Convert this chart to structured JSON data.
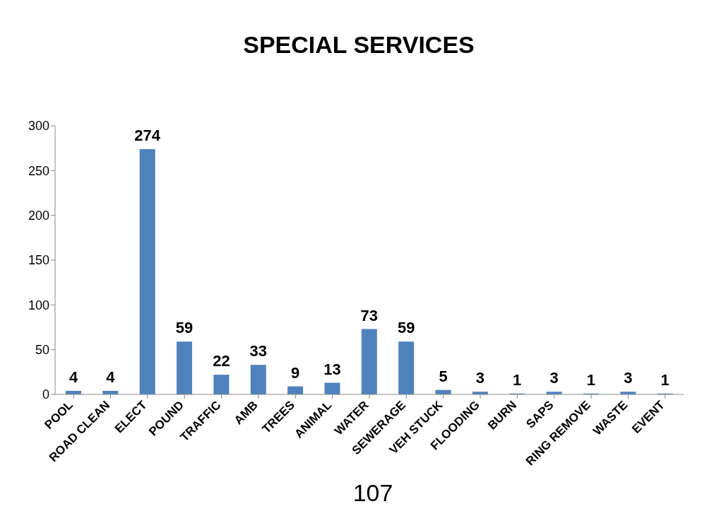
{
  "chart_data": {
    "type": "bar",
    "title": "SPECIAL SERVICES",
    "categories": [
      "POOL",
      "ROAD CLEAN",
      "ELECT",
      "POUND",
      "TRAFFIC",
      "AMB",
      "TREES",
      "ANIMAL",
      "WATER",
      "SEWERAGE",
      "VEH STUCK",
      "FLOODING",
      "BURN",
      "SAPS",
      "RING REMOVE",
      "WASTE",
      "EVENT"
    ],
    "values": [
      4,
      4,
      274,
      59,
      22,
      33,
      9,
      13,
      73,
      59,
      5,
      3,
      1,
      3,
      1,
      3,
      1
    ],
    "color": "#4f81bd",
    "ylim": [
      0,
      300
    ],
    "yticks": [
      0,
      50,
      100,
      150,
      200,
      250,
      300
    ],
    "data_labels": true,
    "annotations": [
      "107"
    ]
  }
}
